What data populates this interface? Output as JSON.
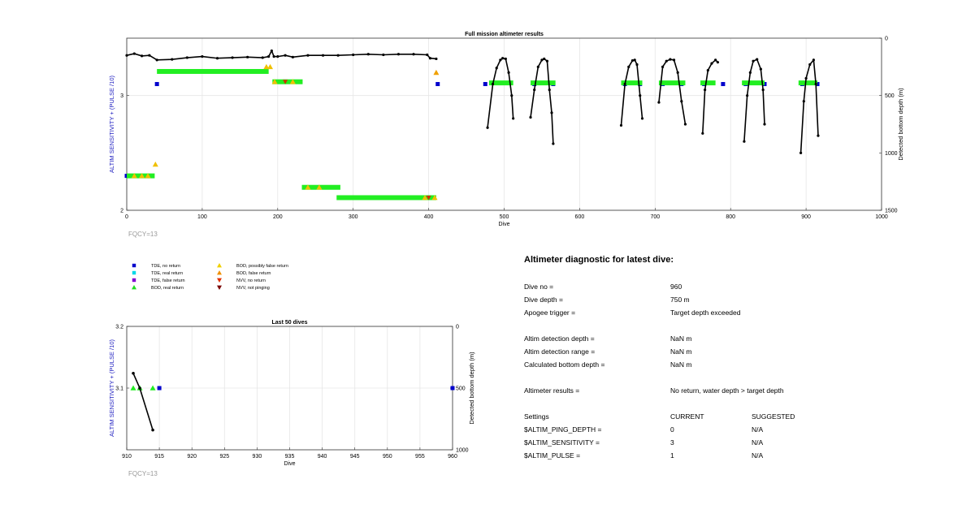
{
  "chart_data": [
    {
      "type": "scatter",
      "title": "Full mission altimeter results",
      "xlabel": "Dive",
      "ylabel_left": "ALTIM SENSITIVITY + (PULSE /10)",
      "ylabel_right": "Detected bottom depth (m)",
      "xlim": [
        0,
        1000
      ],
      "ylim_left": [
        2,
        3.5
      ],
      "ylim_right": [
        1500,
        0
      ],
      "xticks": [
        "0",
        "100",
        "200",
        "300",
        "400",
        "500",
        "600",
        "700",
        "800",
        "900",
        "1000"
      ],
      "yticks_left": [
        "2",
        "3"
      ],
      "yticks_right": [
        "0",
        "500",
        "1000",
        "1500"
      ],
      "grid": true,
      "annotation": "FQCY=13",
      "series": [
        {
          "name": "TDE, no return",
          "color": "#0000cc",
          "points": [
            [
              0,
              2.3
            ],
            [
              40,
              3.1
            ],
            [
              412,
              3.1
            ],
            [
              475,
              3.1
            ],
            [
              540,
              3.1
            ],
            [
              565,
              3.1
            ],
            [
              660,
              3.1
            ],
            [
              680,
              3.1
            ],
            [
              710,
              3.1
            ],
            [
              735,
              3.1
            ],
            [
              765,
              3.1
            ],
            [
              790,
              3.1
            ],
            [
              820,
              3.1
            ],
            [
              845,
              3.1
            ],
            [
              895,
              3.1
            ],
            [
              915,
              3.1
            ]
          ]
        },
        {
          "name": "BOD, real return",
          "color": "#22ee22",
          "segments": [
            [
              0,
              37,
              2.3
            ],
            [
              40,
              188,
              3.21
            ],
            [
              193,
              233,
              3.12
            ],
            [
              232,
              283,
              2.2
            ],
            [
              278,
              410,
              2.11
            ],
            [
              480,
              512,
              3.11
            ],
            [
              535,
              568,
              3.11
            ],
            [
              655,
              683,
              3.11
            ],
            [
              705,
              740,
              3.11
            ],
            [
              760,
              780,
              3.11
            ],
            [
              815,
              845,
              3.11
            ],
            [
              890,
              915,
              3.11
            ]
          ]
        },
        {
          "name": "BOD, possibly false return",
          "color": "#f0c000",
          "points": [
            [
              10,
              2.3
            ],
            [
              20,
              2.3
            ],
            [
              28,
              2.3
            ],
            [
              38,
              2.4
            ],
            [
              185,
              3.25
            ],
            [
              190,
              3.25
            ],
            [
              196,
              3.12
            ],
            [
              220,
              3.12
            ],
            [
              240,
              2.2
            ],
            [
              255,
              2.2
            ],
            [
              395,
              2.11
            ],
            [
              408,
              2.11
            ]
          ]
        },
        {
          "name": "BOD, false return",
          "color": "#f0a000",
          "points": [
            [
              410,
              3.2
            ]
          ]
        },
        {
          "name": "NVV, no return",
          "color": "#cc3300",
          "points": [
            [
              210,
              3.12
            ],
            [
              400,
              2.11
            ]
          ]
        },
        {
          "name": "Detected bottom depth",
          "color": "#000000",
          "axis": "right",
          "polylines": [
            [
              [
                0,
                150
              ],
              [
                10,
                135
              ],
              [
                20,
                155
              ],
              [
                30,
                150
              ],
              [
                40,
                190
              ],
              [
                60,
                185
              ],
              [
                80,
                170
              ],
              [
                100,
                160
              ],
              [
                120,
                175
              ],
              [
                140,
                170
              ],
              [
                160,
                165
              ],
              [
                180,
                170
              ],
              [
                188,
                160
              ],
              [
                192,
                110
              ],
              [
                195,
                160
              ],
              [
                200,
                160
              ],
              [
                210,
                150
              ],
              [
                220,
                165
              ],
              [
                240,
                150
              ],
              [
                260,
                150
              ],
              [
                280,
                150
              ],
              [
                300,
                145
              ],
              [
                320,
                140
              ],
              [
                340,
                145
              ],
              [
                360,
                140
              ],
              [
                380,
                140
              ],
              [
                398,
                145
              ],
              [
                402,
                175
              ],
              [
                410,
                180
              ]
            ],
            [
              [
                478,
                780
              ],
              [
                485,
                400
              ],
              [
                490,
                260
              ],
              [
                495,
                190
              ],
              [
                498,
                175
              ],
              [
                502,
                180
              ],
              [
                506,
                300
              ],
              [
                510,
                500
              ],
              [
                512,
                700
              ]
            ],
            [
              [
                535,
                690
              ],
              [
                540,
                450
              ],
              [
                545,
                250
              ],
              [
                550,
                190
              ],
              [
                553,
                180
              ],
              [
                557,
                200
              ],
              [
                560,
                450
              ],
              [
                563,
                650
              ],
              [
                565,
                920
              ]
            ],
            [
              [
                655,
                760
              ],
              [
                660,
                400
              ],
              [
                665,
                250
              ],
              [
                670,
                195
              ],
              [
                673,
                190
              ],
              [
                676,
                230
              ],
              [
                680,
                500
              ],
              [
                683,
                700
              ]
            ],
            [
              [
                705,
                560
              ],
              [
                710,
                250
              ],
              [
                715,
                200
              ],
              [
                720,
                185
              ],
              [
                725,
                190
              ],
              [
                730,
                300
              ],
              [
                735,
                550
              ],
              [
                740,
                750
              ]
            ],
            [
              [
                763,
                830
              ],
              [
                766,
                450
              ],
              [
                770,
                280
              ],
              [
                775,
                220
              ],
              [
                780,
                190
              ],
              [
                783,
                210
              ]
            ],
            [
              [
                818,
                900
              ],
              [
                822,
                500
              ],
              [
                826,
                300
              ],
              [
                830,
                200
              ],
              [
                835,
                185
              ],
              [
                840,
                270
              ],
              [
                843,
                450
              ],
              [
                845,
                750
              ]
            ],
            [
              [
                893,
                1000
              ],
              [
                897,
                550
              ],
              [
                900,
                350
              ],
              [
                905,
                230
              ],
              [
                910,
                190
              ],
              [
                913,
                400
              ],
              [
                916,
                850
              ]
            ]
          ]
        }
      ]
    },
    {
      "type": "scatter",
      "title": "Last 50 dives",
      "xlabel": "Dive",
      "ylabel_left": "ALTIM SENSITIVITY + (PULSE /10)",
      "ylabel_right": "Detected bottom depth (m)",
      "xlim": [
        910,
        960
      ],
      "ylim_left": [
        3,
        3.2
      ],
      "ylim_right": [
        1000,
        0
      ],
      "xticks": [
        "910",
        "915",
        "920",
        "925",
        "930",
        "935",
        "940",
        "945",
        "950",
        "955",
        "960"
      ],
      "yticks_left": [
        "3.1",
        "3.2"
      ],
      "yticks_right": [
        "0",
        "500",
        "1000"
      ],
      "grid": true,
      "annotation": "FQCY=13",
      "series": [
        {
          "name": "TDE, no return",
          "color": "#0000cc",
          "points": [
            [
              915,
              3.1
            ],
            [
              960,
              3.1
            ]
          ]
        },
        {
          "name": "BOD, real return",
          "color": "#22ee22",
          "points": [
            [
              911,
              3.1
            ],
            [
              912,
              3.1
            ],
            [
              914,
              3.1
            ]
          ]
        },
        {
          "name": "Detected bottom depth",
          "color": "#000000",
          "axis": "right",
          "points": [
            [
              911,
              380
            ],
            [
              912,
              500
            ],
            [
              914,
              840
            ]
          ]
        }
      ]
    }
  ],
  "legend": {
    "items": [
      {
        "label": "TDE, no return",
        "color": "#0000cc",
        "marker": "square"
      },
      {
        "label": "TDE, real return",
        "color": "#00d8e8",
        "marker": "square"
      },
      {
        "label": "TDE, false return",
        "color": "#8000d0",
        "marker": "square"
      },
      {
        "label": "BOD, real return",
        "color": "#22dd22",
        "marker": "triangle-up"
      },
      {
        "label": "BOD, possibly false return",
        "color": "#f0d000",
        "marker": "triangle-up"
      },
      {
        "label": "BOD, false return",
        "color": "#f09000",
        "marker": "triangle-up"
      },
      {
        "label": "NVV, no return",
        "color": "#e03000",
        "marker": "triangle-down"
      },
      {
        "label": "NVV, not pinging",
        "color": "#7a0000",
        "marker": "triangle-down"
      }
    ]
  },
  "diagnostic": {
    "title": "Altimeter diagnostic for latest dive:",
    "rows": [
      {
        "label": "Dive no =",
        "value": "960"
      },
      {
        "label": "Dive depth =",
        "value": "750 m"
      },
      {
        "label": "Apogee trigger =",
        "value": "Target depth exceeded"
      },
      {
        "label": "Altim detection depth =",
        "value": "NaN m"
      },
      {
        "label": "Altim detection range =",
        "value": "NaN m"
      },
      {
        "label": "Calculated bottom depth =",
        "value": "NaN m"
      },
      {
        "label": "Altimeter results =",
        "value": "No return, water depth > target depth"
      }
    ],
    "settings_header": {
      "label": "Settings",
      "current": "CURRENT",
      "suggested": "SUGGESTED"
    },
    "settings": [
      {
        "label": "$ALTIM_PING_DEPTH =",
        "current": "0",
        "suggested": "N/A"
      },
      {
        "label": "$ALTIM_SENSITIVITY =",
        "current": "3",
        "suggested": "N/A"
      },
      {
        "label": "$ALTIM_PULSE =",
        "current": "1",
        "suggested": "N/A"
      }
    ]
  }
}
